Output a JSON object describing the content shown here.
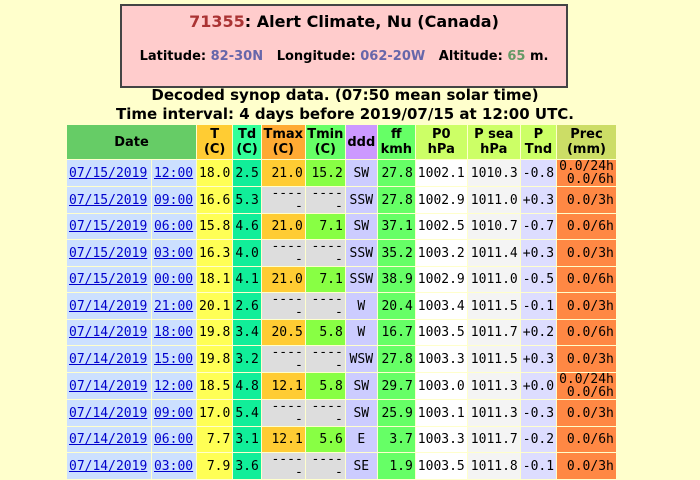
{
  "header": {
    "station": "71355",
    "name": "Alert Climate, Nu (Canada)",
    "latitude_label": "Latitude:",
    "latitude": "82-30N",
    "longitude_label": "Longitude:",
    "longitude": "062-20W",
    "altitude_label": "Altitude:",
    "altitude": "65",
    "altitude_unit": "m."
  },
  "subtitle": "Decoded synop data. (07:50 mean solar time)",
  "interval": "Time interval: 4 days before 2019/07/15 at 12:00 UTC.",
  "table": {
    "columns": [
      [
        "Date"
      ],
      [
        "T",
        "(C)"
      ],
      [
        "Td",
        "(C)"
      ],
      [
        "Tmax",
        "(C)"
      ],
      [
        "Tmin",
        "(C)"
      ],
      [
        "ddd"
      ],
      [
        "ff",
        "kmh"
      ],
      [
        "P0",
        "hPa"
      ],
      [
        "P sea",
        "hPa"
      ],
      [
        "P",
        "Tnd"
      ],
      [
        "Prec",
        "(mm)"
      ]
    ],
    "rows": [
      [
        "07/15/2019",
        "12:00",
        "18.0",
        "2.5",
        "21.0",
        "15.2",
        "SW",
        "27.8",
        "1002.1",
        "1010.3",
        "-0.8",
        [
          "0.0/24h",
          "0.0/6h"
        ]
      ],
      [
        "07/15/2019",
        "09:00",
        "16.6",
        "5.3",
        "-----",
        "-----",
        "SSW",
        "27.8",
        "1002.9",
        "1011.0",
        "+0.3",
        [
          "0.0/3h"
        ]
      ],
      [
        "07/15/2019",
        "06:00",
        "15.8",
        "4.6",
        "21.0",
        "7.1",
        "SW",
        "37.1",
        "1002.5",
        "1010.7",
        "-0.7",
        [
          "0.0/6h"
        ]
      ],
      [
        "07/15/2019",
        "03:00",
        "16.3",
        "4.0",
        "-----",
        "-----",
        "SSW",
        "35.2",
        "1003.2",
        "1011.4",
        "+0.3",
        [
          "0.0/3h"
        ]
      ],
      [
        "07/15/2019",
        "00:00",
        "18.1",
        "4.1",
        "21.0",
        "7.1",
        "SSW",
        "38.9",
        "1002.9",
        "1011.0",
        "-0.5",
        [
          "0.0/6h"
        ]
      ],
      [
        "07/14/2019",
        "21:00",
        "20.1",
        "2.6",
        "-----",
        "-----",
        "W",
        "20.4",
        "1003.4",
        "1011.5",
        "-0.1",
        [
          "0.0/3h"
        ]
      ],
      [
        "07/14/2019",
        "18:00",
        "19.8",
        "3.4",
        "20.5",
        "5.8",
        "W",
        "16.7",
        "1003.5",
        "1011.7",
        "+0.2",
        [
          "0.0/6h"
        ]
      ],
      [
        "07/14/2019",
        "15:00",
        "19.8",
        "3.2",
        "-----",
        "-----",
        "WSW",
        "27.8",
        "1003.3",
        "1011.5",
        "+0.3",
        [
          "0.0/3h"
        ]
      ],
      [
        "07/14/2019",
        "12:00",
        "18.5",
        "4.8",
        "12.1",
        "5.8",
        "SW",
        "29.7",
        "1003.0",
        "1011.3",
        "+0.0",
        [
          "0.0/24h",
          "0.0/6h"
        ]
      ],
      [
        "07/14/2019",
        "09:00",
        "17.0",
        "5.4",
        "-----",
        "-----",
        "SW",
        "25.9",
        "1003.1",
        "1011.3",
        "-0.3",
        [
          "0.0/3h"
        ]
      ],
      [
        "07/14/2019",
        "06:00",
        "7.7",
        "3.1",
        "12.1",
        "5.6",
        "E",
        "3.7",
        "1003.3",
        "1011.7",
        "-0.2",
        [
          "0.0/6h"
        ]
      ],
      [
        "07/14/2019",
        "03:00",
        "7.9",
        "3.6",
        "-----",
        "-----",
        "SE",
        "1.9",
        "1003.5",
        "1011.8",
        "-0.1",
        [
          "0.0/3h"
        ]
      ]
    ]
  }
}
